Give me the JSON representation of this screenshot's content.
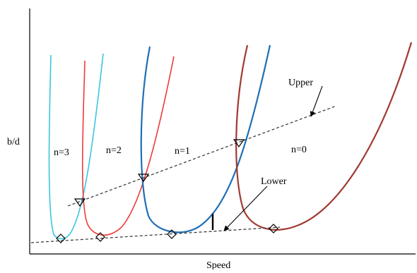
{
  "axes": {
    "xlabel": "Speed",
    "ylabel": "b/d"
  },
  "regions": [
    {
      "label": "n=3"
    },
    {
      "label": "n=2"
    },
    {
      "label": "n=1"
    },
    {
      "label": "n=0"
    }
  ],
  "annotations": {
    "upper": "Upper",
    "lower": "Lower"
  },
  "colors": {
    "cyan": "#3cc4e0",
    "red": "#ee3b3b",
    "blue": "#1f6fb5",
    "brown": "#a03a32",
    "dashed": "#333333"
  }
}
